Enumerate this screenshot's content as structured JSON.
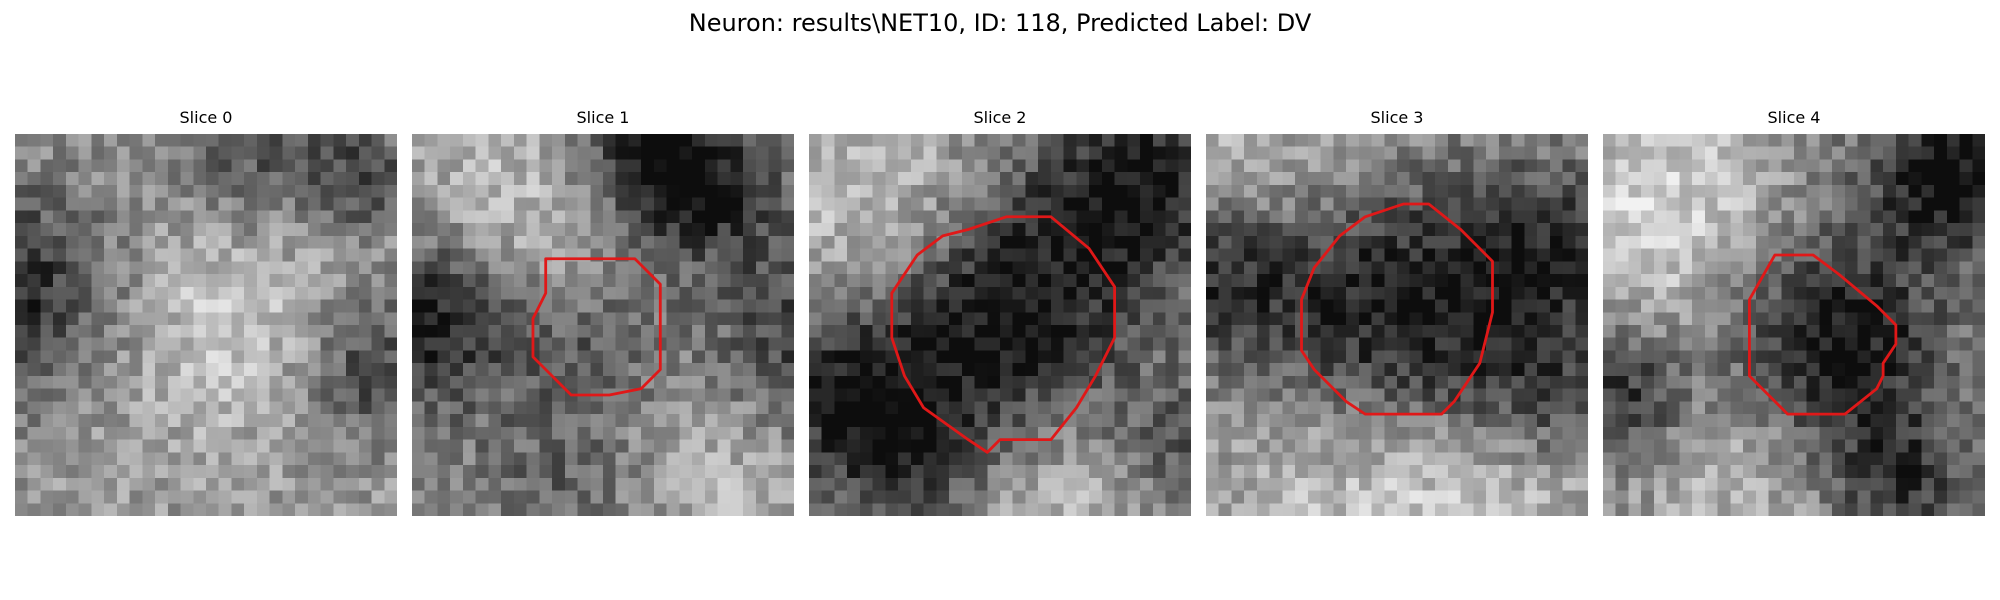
{
  "figure": {
    "title": "Neuron: results\\NET10, ID: 118, Predicted Label: DV",
    "outline_color": "#e01818"
  },
  "panels": [
    {
      "title": "Slice 0",
      "seed": 11,
      "has_outline": false
    },
    {
      "title": "Slice 1",
      "seed": 23,
      "has_outline": true
    },
    {
      "title": "Slice 2",
      "seed": 37,
      "has_outline": true
    },
    {
      "title": "Slice 3",
      "seed": 41,
      "has_outline": true
    },
    {
      "title": "Slice 4",
      "seed": 59,
      "has_outline": true
    }
  ]
}
